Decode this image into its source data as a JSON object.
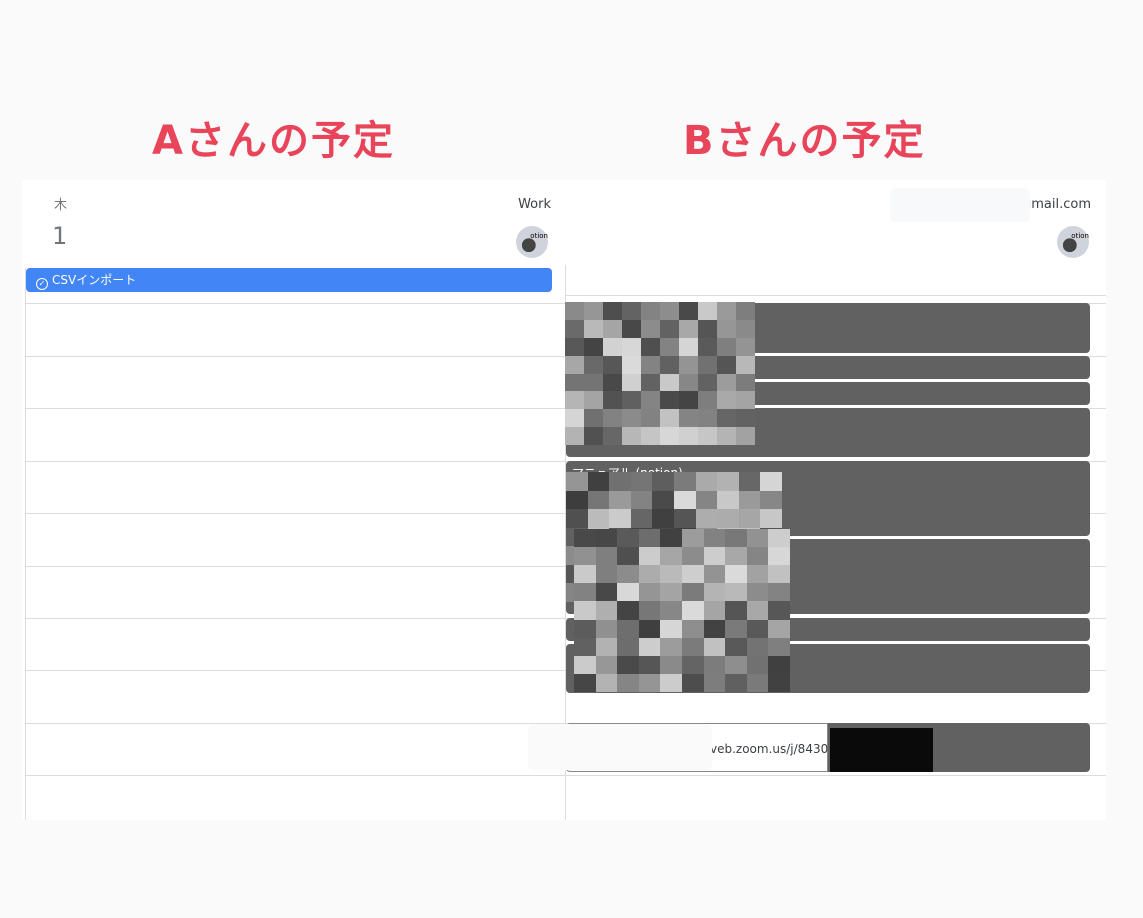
{
  "titles": {
    "a": "Aさんの予定",
    "b": "Bさんの予定"
  },
  "colors": {
    "title": "#e8445a",
    "task": "#4285f4",
    "event": "#616161"
  },
  "calendar_a": {
    "weekday": "木",
    "day": "1",
    "calendar_name": "Work",
    "avatar_text": "otion",
    "task": {
      "icon": "check-circle-icon",
      "label": "CSVインポート"
    }
  },
  "calendar_b": {
    "account": "gmail.com",
    "avatar_text": "otion",
    "event_label": "マニュアル (notion)",
    "zoom_link": "veb.zoom.us/j/8430"
  }
}
